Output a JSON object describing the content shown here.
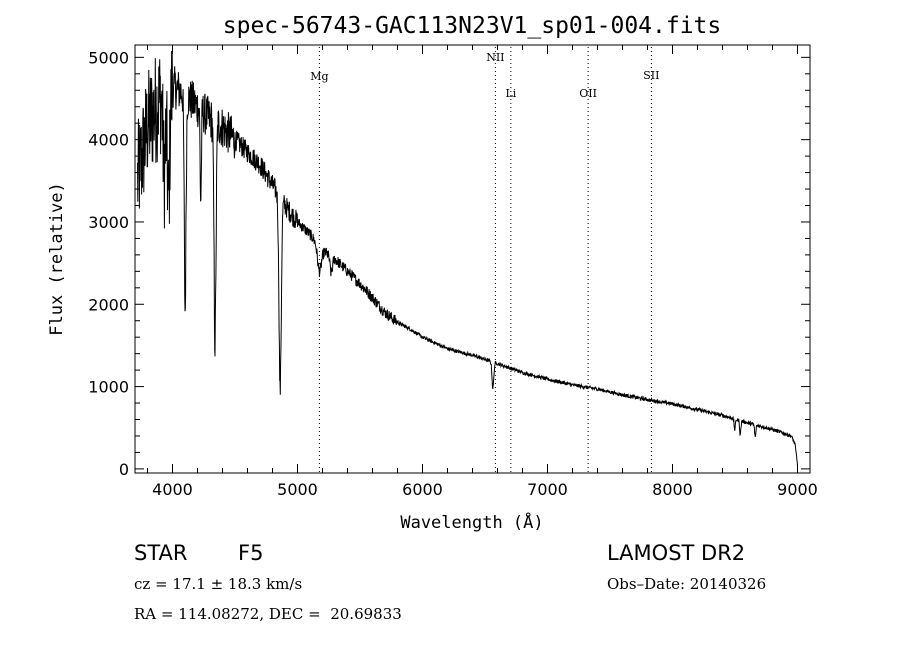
{
  "chart_data": {
    "type": "line",
    "title": "spec-56743-GAC113N23V1_sp01-004.fits",
    "xlabel": "Wavelength (Å)",
    "ylabel": "Flux (relative)",
    "xlim": [
      3700,
      9100
    ],
    "ylim": [
      -50,
      5150
    ],
    "x_ticks": [
      4000,
      5000,
      6000,
      7000,
      8000,
      9000
    ],
    "y_ticks": [
      0,
      1000,
      2000,
      3000,
      4000,
      5000
    ],
    "grid": false,
    "continuum": [
      [
        3720,
        3500
      ],
      [
        3800,
        4150
      ],
      [
        3900,
        4500
      ],
      [
        4000,
        4650
      ],
      [
        4100,
        4550
      ],
      [
        4200,
        4400
      ],
      [
        4300,
        4250
      ],
      [
        4400,
        4150
      ],
      [
        4500,
        4000
      ],
      [
        4600,
        3850
      ],
      [
        4700,
        3700
      ],
      [
        4800,
        3450
      ],
      [
        4900,
        3200
      ],
      [
        5000,
        3000
      ],
      [
        5100,
        2850
      ],
      [
        5200,
        2650
      ],
      [
        5300,
        2550
      ],
      [
        5400,
        2400
      ],
      [
        5500,
        2250
      ],
      [
        5600,
        2080
      ],
      [
        5700,
        1900
      ],
      [
        5800,
        1780
      ],
      [
        5900,
        1700
      ],
      [
        6000,
        1600
      ],
      [
        6200,
        1460
      ],
      [
        6400,
        1380
      ],
      [
        6600,
        1280
      ],
      [
        6800,
        1170
      ],
      [
        7000,
        1090
      ],
      [
        7200,
        1020
      ],
      [
        7400,
        970
      ],
      [
        7600,
        900
      ],
      [
        7800,
        840
      ],
      [
        8000,
        790
      ],
      [
        8200,
        720
      ],
      [
        8400,
        650
      ],
      [
        8600,
        560
      ],
      [
        8800,
        480
      ],
      [
        8950,
        400
      ],
      [
        8980,
        300
      ],
      [
        9000,
        50
      ]
    ],
    "absorption_lines": [
      [
        3934,
        950,
        10
      ],
      [
        3968,
        1350,
        10
      ],
      [
        4101,
        2650,
        7
      ],
      [
        4226,
        1100,
        5
      ],
      [
        4340,
        2700,
        8
      ],
      [
        4861,
        2350,
        9
      ],
      [
        5175,
        300,
        15
      ],
      [
        5270,
        200,
        10
      ],
      [
        6563,
        320,
        7
      ],
      [
        8498,
        130,
        5
      ],
      [
        8542,
        170,
        5
      ],
      [
        8662,
        150,
        5
      ]
    ],
    "spectral_lines": [
      {
        "name": "Mg",
        "wavelength": 5175
      },
      {
        "name": "NII",
        "wavelength": 6583
      },
      {
        "name": "Li",
        "wavelength": 6707
      },
      {
        "name": "OII",
        "wavelength": 7325
      },
      {
        "name": "SII",
        "wavelength": 7831
      }
    ]
  },
  "info": {
    "class_label": "STAR",
    "subclass": "F5",
    "survey": "LAMOST DR2",
    "redshift": "cz = 17.1 ± 18.3 km/s",
    "obs_date": "Obs–Date: 20140326",
    "coords": "RA = 114.08272, DEC =  20.69833"
  }
}
